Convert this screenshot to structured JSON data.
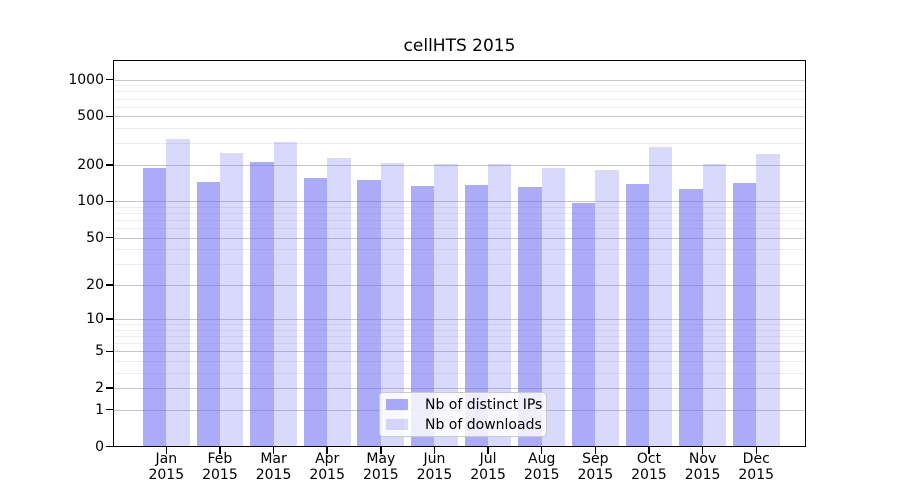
{
  "chart_data": {
    "type": "bar",
    "title": "cellHTS 2015",
    "categories": [
      "Jan",
      "Feb",
      "Mar",
      "Apr",
      "May",
      "Jun",
      "Jul",
      "Aug",
      "Sep",
      "Oct",
      "Nov",
      "Dec"
    ],
    "x_year_line": "2015",
    "series": [
      {
        "name": "Nb of distinct IPs",
        "color_hex": "#a9a9f5",
        "color_rgba": "rgba(102,102,240,0.55)",
        "values": [
          190,
          145,
          212,
          157,
          149,
          135,
          137,
          131,
          97,
          138,
          126,
          143
        ]
      },
      {
        "name": "Nb of downloads",
        "color_hex": "#dcdcf9",
        "color_rgba": "rgba(102,102,240,0.25)",
        "values": [
          324,
          252,
          306,
          230,
          207,
          203,
          204,
          188,
          180,
          280,
          205,
          245
        ]
      }
    ],
    "xlabel": "",
    "ylabel": "",
    "yscale": "log1p",
    "ylim": [
      0,
      1460
    ],
    "yticks": [
      0,
      1,
      2,
      5,
      10,
      20,
      50,
      100,
      200,
      500,
      1000
    ],
    "minor_gridlines": [
      3,
      4,
      6,
      7,
      8,
      9,
      30,
      40,
      60,
      70,
      80,
      90,
      300,
      400,
      600,
      700,
      800,
      900
    ],
    "grid": true,
    "legend_position": "lower center"
  }
}
